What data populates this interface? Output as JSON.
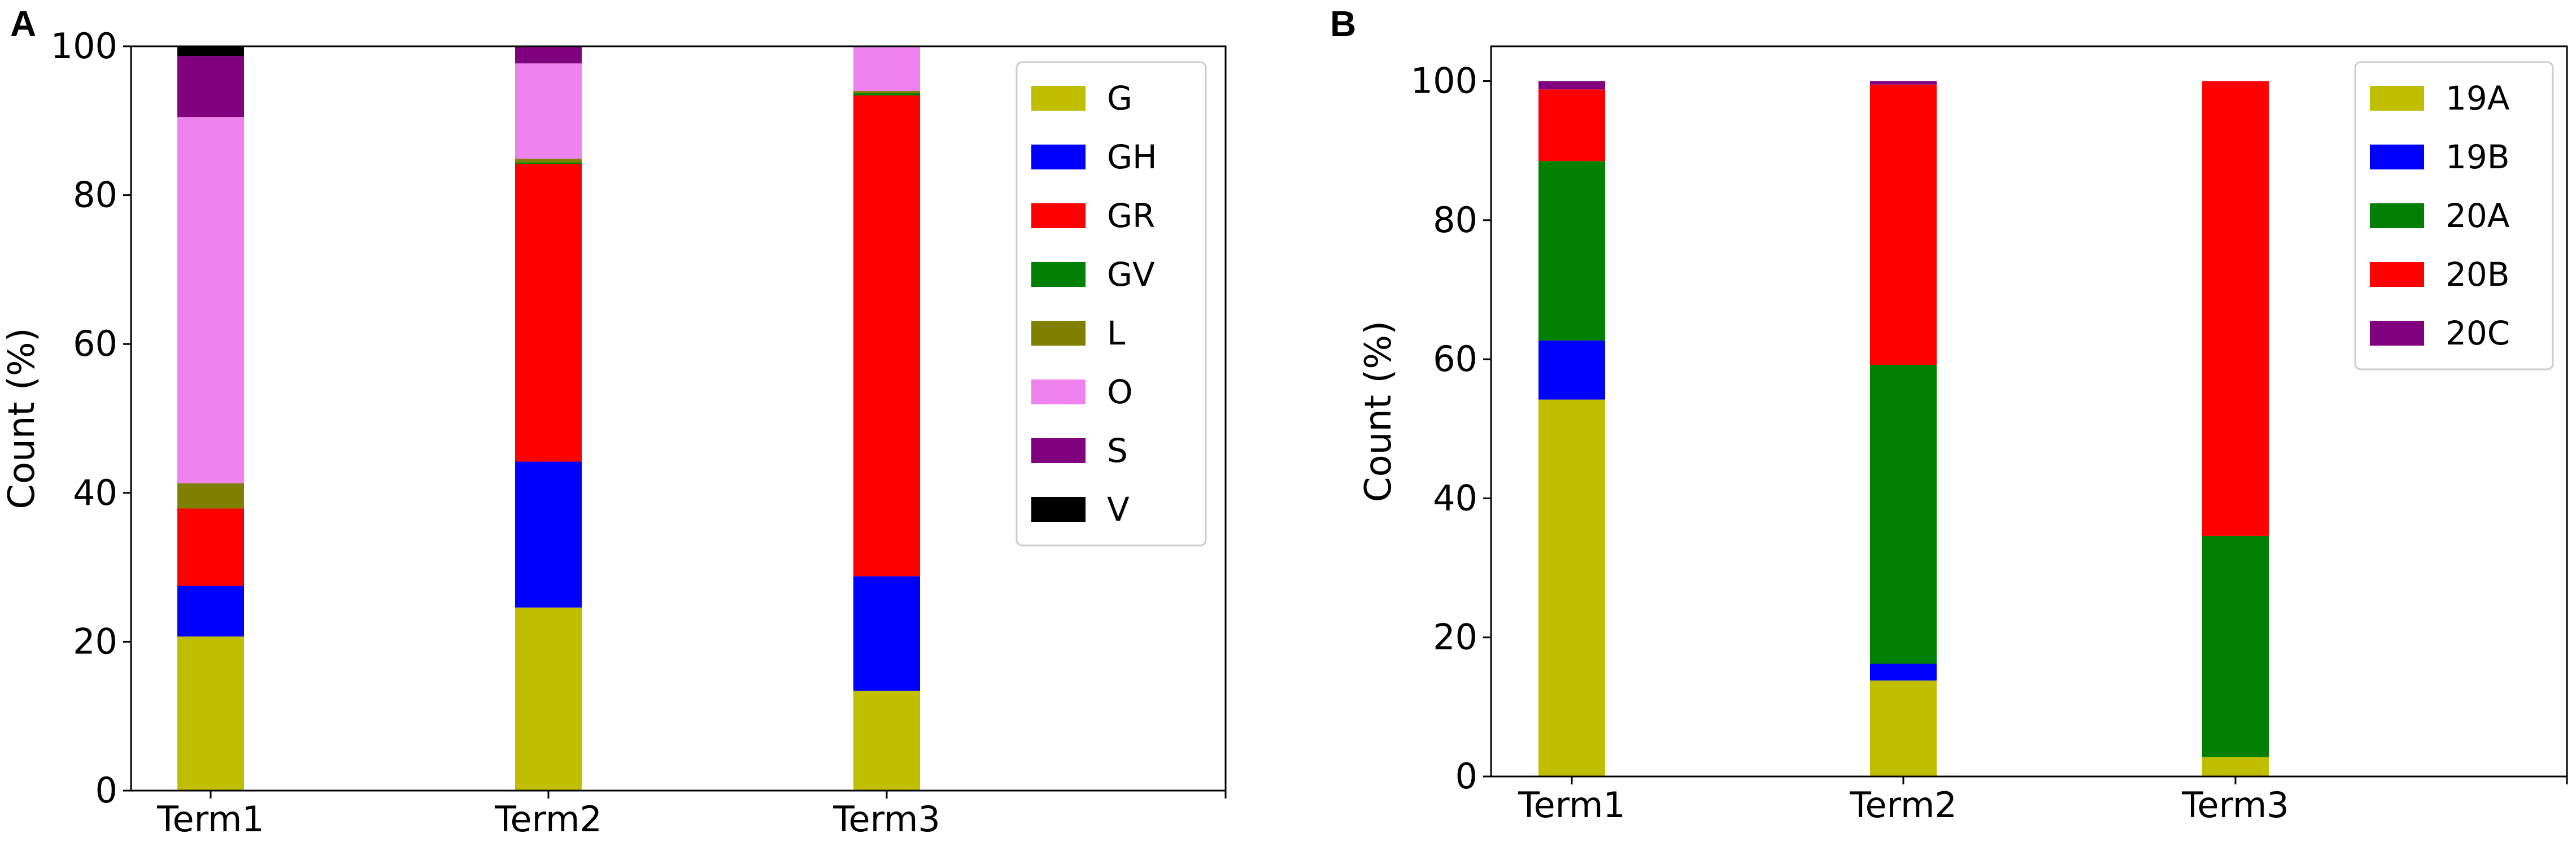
{
  "chart_data": [
    {
      "panel": "A",
      "type": "bar",
      "stacked": true,
      "title": "",
      "xlabel": "",
      "ylabel": "Count (%)",
      "ylim": [
        0,
        100
      ],
      "yticks": [
        0,
        20,
        40,
        60,
        80,
        100
      ],
      "categories": [
        "Term1",
        "Term2",
        "Term3"
      ],
      "legend_position": "top-right",
      "series": [
        {
          "name": "G",
          "color": "#bfbf00",
          "values": [
            20.7,
            24.6,
            13.4
          ]
        },
        {
          "name": "GH",
          "color": "#0000ff",
          "values": [
            6.8,
            19.6,
            15.4
          ]
        },
        {
          "name": "GR",
          "color": "#ff0000",
          "values": [
            10.4,
            40.0,
            64.6
          ]
        },
        {
          "name": "GV",
          "color": "#008000",
          "values": [
            0.0,
            0.2,
            0.3
          ]
        },
        {
          "name": "L",
          "color": "#808000",
          "values": [
            3.4,
            0.5,
            0.3
          ]
        },
        {
          "name": "O",
          "color": "#ee82ee",
          "values": [
            49.2,
            12.8,
            6.0
          ]
        },
        {
          "name": "S",
          "color": "#800080",
          "values": [
            8.2,
            2.3,
            0.0
          ]
        },
        {
          "name": "V",
          "color": "#000000",
          "values": [
            1.3,
            0.0,
            0.0
          ]
        }
      ]
    },
    {
      "panel": "B",
      "type": "bar",
      "stacked": true,
      "title": "",
      "xlabel": "",
      "ylabel": "Count (%)",
      "ylim": [
        0,
        105
      ],
      "yticks": [
        0,
        20,
        40,
        60,
        80,
        100
      ],
      "categories": [
        "Term1",
        "Term2",
        "Term3"
      ],
      "legend_position": "top-right",
      "series": [
        {
          "name": "19A",
          "color": "#bfbf00",
          "values": [
            54.2,
            13.8,
            2.8
          ]
        },
        {
          "name": "19B",
          "color": "#0000ff",
          "values": [
            8.5,
            2.4,
            0.0
          ]
        },
        {
          "name": "20A",
          "color": "#008000",
          "values": [
            25.8,
            43.0,
            31.8
          ]
        },
        {
          "name": "20B",
          "color": "#ff0000",
          "values": [
            10.3,
            40.3,
            65.4
          ]
        },
        {
          "name": "20C",
          "color": "#800080",
          "values": [
            1.2,
            0.5,
            0.0
          ]
        }
      ]
    }
  ]
}
